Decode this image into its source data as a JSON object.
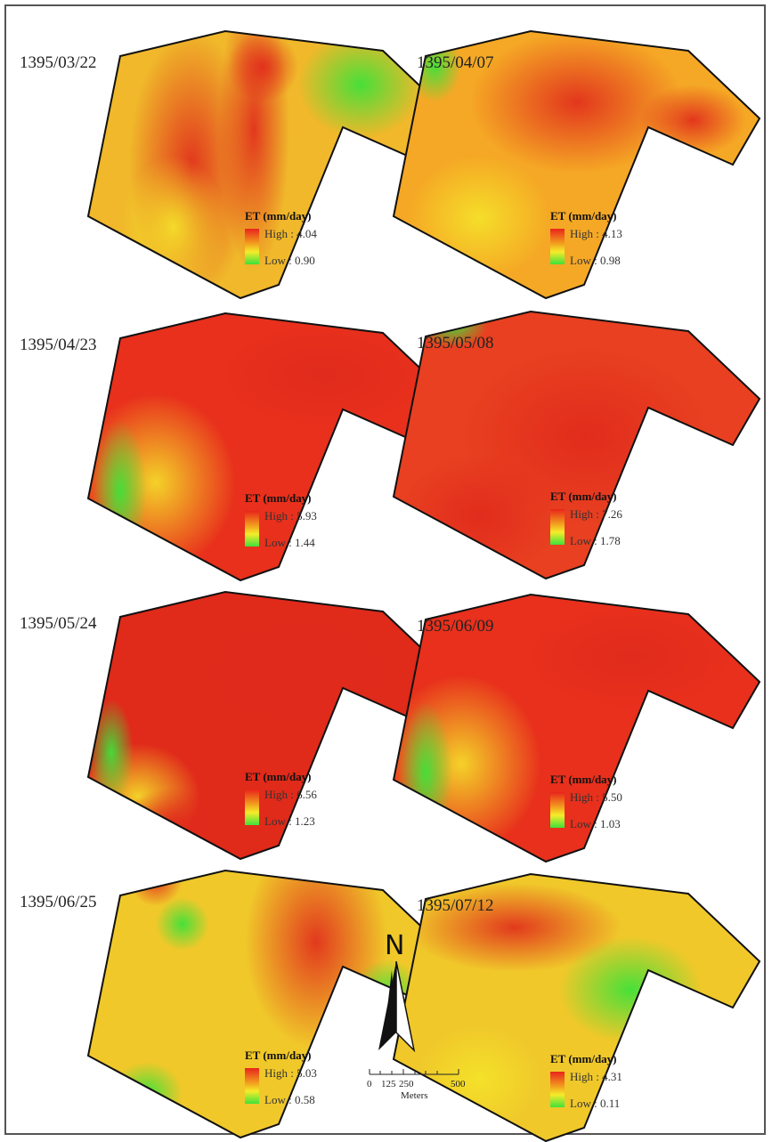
{
  "legend_title": "ET (mm/day)",
  "gradient_colors": [
    "#e8251c",
    "#f29a1e",
    "#f5ec2a",
    "#3fe13a"
  ],
  "panels": [
    {
      "date": "1395/03/22",
      "high": "High : 4.04",
      "low": "Low : 0.90"
    },
    {
      "date": "1395/04/07",
      "high": "High : 4.13",
      "low": "Low : 0.98"
    },
    {
      "date": "1395/04/23",
      "high": "High : 5.93",
      "low": "Low : 1.44"
    },
    {
      "date": "1395/05/08",
      "high": "High : 7.26",
      "low": "Low : 1.78"
    },
    {
      "date": "1395/05/24",
      "high": "High : 6.56",
      "low": "Low : 1.23"
    },
    {
      "date": "1395/06/09",
      "high": "High : 5.50",
      "low": "Low : 1.03"
    },
    {
      "date": "1395/06/25",
      "high": "High : 5.03",
      "low": "Low : 0.58"
    },
    {
      "date": "1395/07/12",
      "high": "High : 4.31",
      "low": "Low : 0.11"
    }
  ],
  "north_arrow": {
    "label": "N"
  },
  "scale_bar": {
    "ticks": [
      "0",
      "125",
      "250",
      "500"
    ],
    "unit": "Meters"
  }
}
